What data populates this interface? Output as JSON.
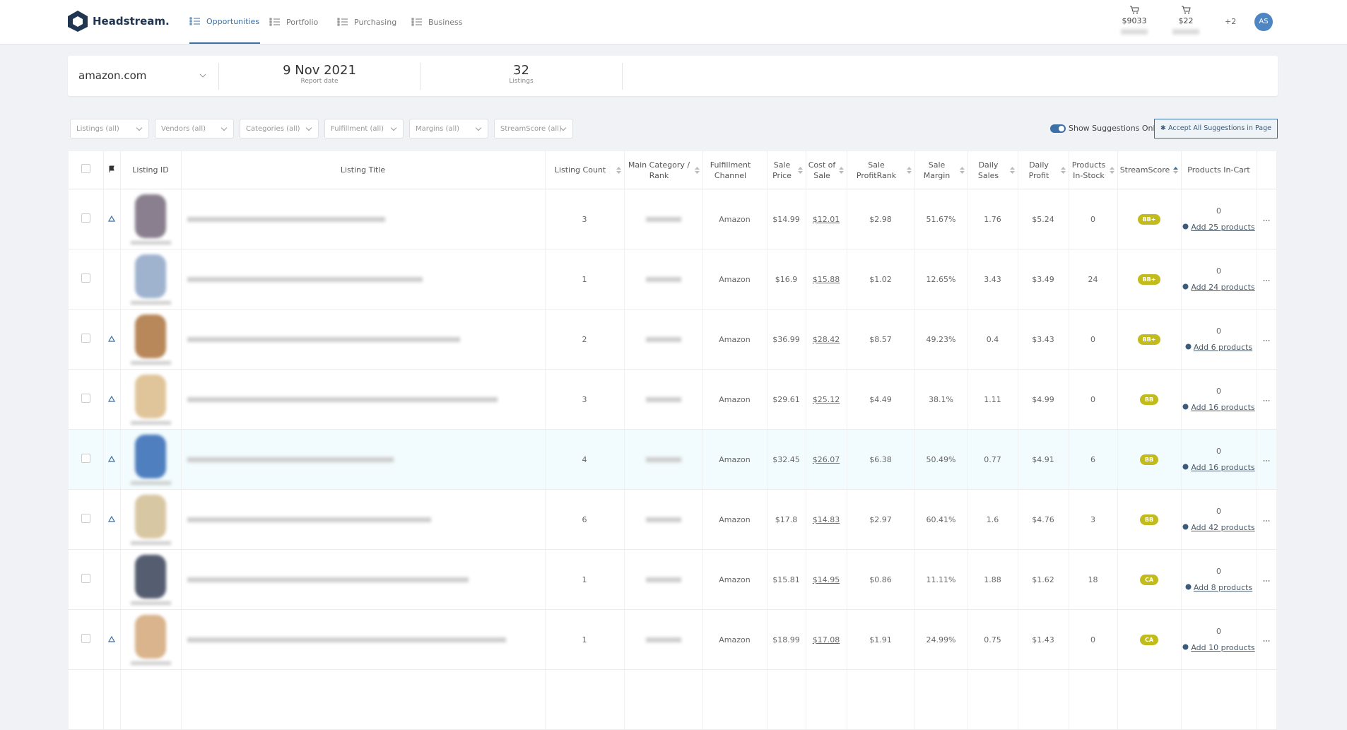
{
  "nav": {
    "brand": "Headstream.",
    "items": [
      "Opportunities",
      "Portfolio",
      "Purchasing",
      "Business"
    ],
    "carts": [
      "$9033",
      "$22"
    ],
    "extra": "+2",
    "avatar": "AS"
  },
  "summary": {
    "marketplace": "amazon.com",
    "date": "9 Nov 2021",
    "date_label": "Report date",
    "count": "32",
    "count_label": "Listings"
  },
  "filters": [
    "Listings (all)",
    "Vendors (all)",
    "Categories (all)",
    "Fulfillment (all)",
    "Margins (all)",
    "StreamScore (all)"
  ],
  "toggle_label": "Show Suggestions Only",
  "accept_button": "Accept All Suggestions in Page",
  "table": {
    "columns": [
      null,
      null,
      "Listing ID",
      "Listing Title",
      "Listing Count",
      "Main Category / Rank",
      "Fulfillment Channel",
      "Sale Price",
      "Cost of Sale",
      "Sale ProfitRank",
      "Sale Margin",
      "Daily Sales",
      "Daily Profit",
      "Products In-Stock",
      "StreamScore",
      "Products In-Cart",
      null
    ],
    "rows": [
      {
        "warning": true,
        "count": "3",
        "channel": "Amazon",
        "price": "$14.99",
        "cost": "$12.01",
        "profit": "$2.98",
        "margin": "51.67%",
        "sales": "1.76",
        "daily_profit": "$5.24",
        "stock": "0",
        "score": "BB+",
        "in_cart": "0",
        "suggestion": "Add 25 products"
      },
      {
        "warning": false,
        "count": "1",
        "channel": "Amazon",
        "price": "$16.9",
        "cost": "$15.88",
        "profit": "$1.02",
        "margin": "12.65%",
        "sales": "3.43",
        "daily_profit": "$3.49",
        "stock": "24",
        "score": "BB+",
        "in_cart": "0",
        "suggestion": "Add 24 products"
      },
      {
        "warning": true,
        "count": "2",
        "channel": "Amazon",
        "price": "$36.99",
        "cost": "$28.42",
        "profit": "$8.57",
        "margin": "49.23%",
        "sales": "0.4",
        "daily_profit": "$3.43",
        "stock": "0",
        "score": "BB+",
        "in_cart": "0",
        "suggestion": "Add 6 products"
      },
      {
        "warning": true,
        "count": "3",
        "channel": "Amazon",
        "price": "$29.61",
        "cost": "$25.12",
        "profit": "$4.49",
        "margin": "38.1%",
        "sales": "1.11",
        "daily_profit": "$4.99",
        "stock": "0",
        "score": "BB",
        "in_cart": "0",
        "suggestion": "Add 16 products"
      },
      {
        "warning": true,
        "count": "4",
        "channel": "Amazon",
        "price": "$32.45",
        "cost": "$26.07",
        "profit": "$6.38",
        "margin": "50.49%",
        "sales": "0.77",
        "daily_profit": "$4.91",
        "stock": "6",
        "score": "BB",
        "in_cart": "0",
        "suggestion": "Add 16 products"
      },
      {
        "warning": true,
        "count": "6",
        "channel": "Amazon",
        "price": "$17.8",
        "cost": "$14.83",
        "profit": "$2.97",
        "margin": "60.41%",
        "sales": "1.6",
        "daily_profit": "$4.76",
        "stock": "3",
        "score": "BB",
        "in_cart": "0",
        "suggestion": "Add 42 products"
      },
      {
        "warning": false,
        "count": "1",
        "channel": "Amazon",
        "price": "$15.81",
        "cost": "$14.95",
        "profit": "$0.86",
        "margin": "11.11%",
        "sales": "1.88",
        "daily_profit": "$1.62",
        "stock": "18",
        "score": "CA",
        "in_cart": "0",
        "suggestion": "Add 8 products"
      },
      {
        "warning": true,
        "count": "1",
        "channel": "Amazon",
        "price": "$18.99",
        "cost": "$17.08",
        "profit": "$1.91",
        "margin": "24.99%",
        "sales": "0.75",
        "daily_profit": "$1.43",
        "stock": "0",
        "score": "CA",
        "in_cart": "0",
        "suggestion": "Add 10 products"
      }
    ]
  }
}
